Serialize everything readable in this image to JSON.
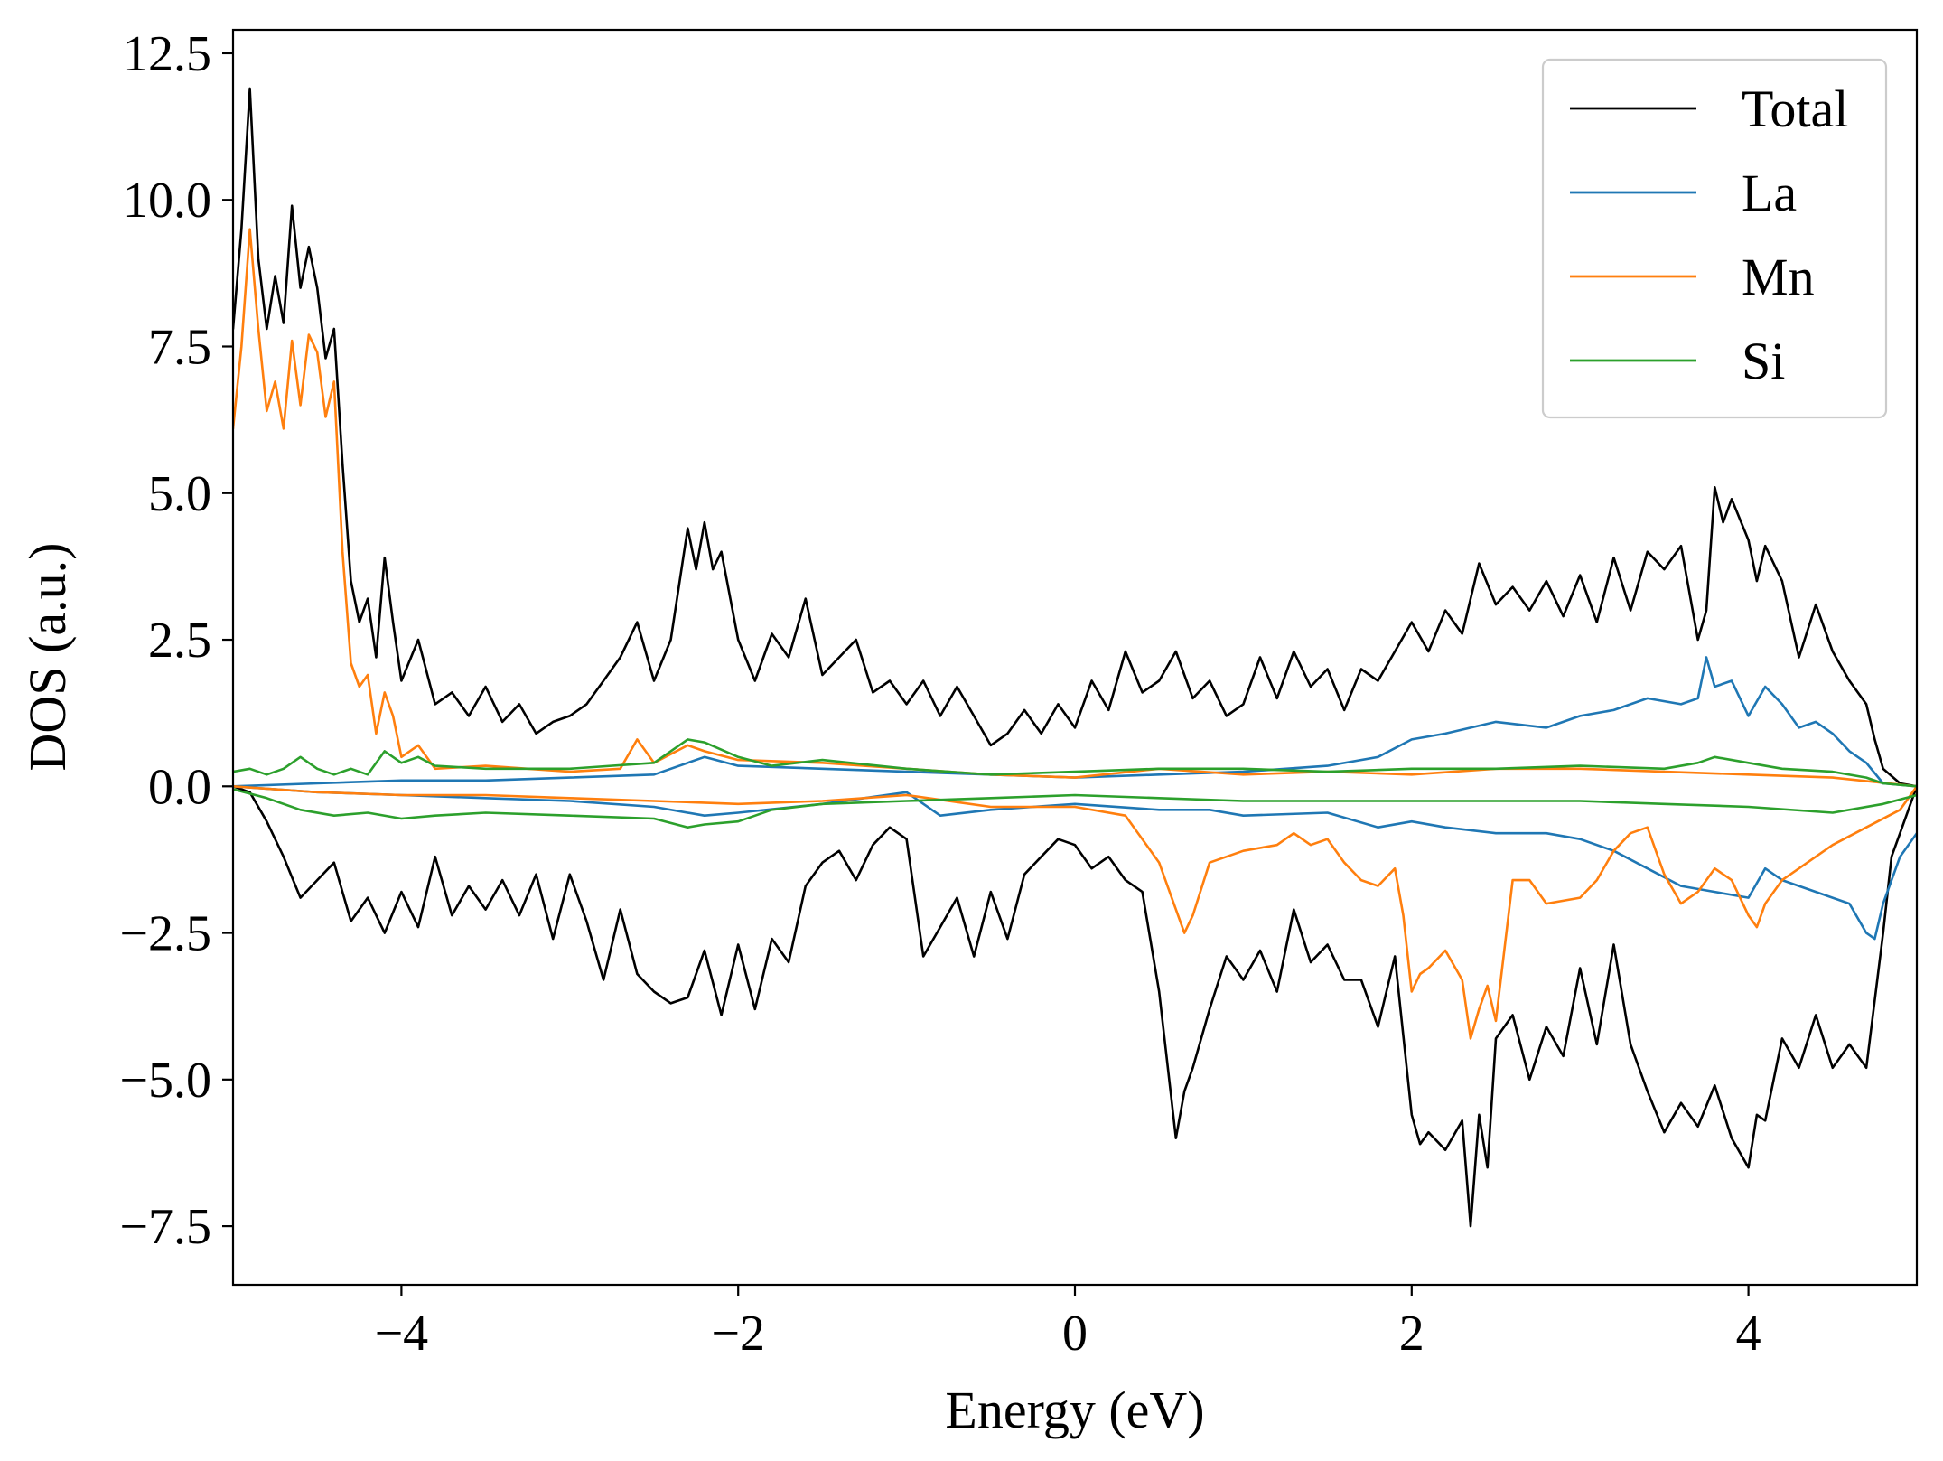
{
  "chart_data": {
    "type": "line",
    "xlabel": "Energy (eV)",
    "ylabel": "DOS (a.u.)",
    "xlim": [
      -5,
      5
    ],
    "ylim": [
      -8.5,
      12.9
    ],
    "xticks": [
      -4,
      -2,
      0,
      2,
      4
    ],
    "xtick_labels": [
      "−4",
      "−2",
      "0",
      "2",
      "4"
    ],
    "yticks": [
      -7.5,
      -5.0,
      -2.5,
      0.0,
      2.5,
      5.0,
      7.5,
      10.0,
      12.5
    ],
    "ytick_labels": [
      "−7.5",
      "−5.0",
      "−2.5",
      "0.0",
      "2.5",
      "5.0",
      "7.5",
      "10.0",
      "12.5"
    ],
    "grid": false,
    "legend_position": "top-right",
    "series": [
      {
        "name": "Total",
        "color": "#000000",
        "spin_up": {
          "x": [
            -5.0,
            -4.95,
            -4.9,
            -4.85,
            -4.8,
            -4.75,
            -4.7,
            -4.65,
            -4.6,
            -4.55,
            -4.5,
            -4.45,
            -4.4,
            -4.35,
            -4.3,
            -4.25,
            -4.2,
            -4.15,
            -4.1,
            -4.05,
            -4.0,
            -3.9,
            -3.8,
            -3.7,
            -3.6,
            -3.5,
            -3.4,
            -3.3,
            -3.2,
            -3.1,
            -3.0,
            -2.9,
            -2.8,
            -2.7,
            -2.6,
            -2.5,
            -2.4,
            -2.3,
            -2.25,
            -2.2,
            -2.15,
            -2.1,
            -2.0,
            -1.9,
            -1.8,
            -1.7,
            -1.6,
            -1.5,
            -1.4,
            -1.3,
            -1.2,
            -1.1,
            -1.0,
            -0.9,
            -0.8,
            -0.7,
            -0.6,
            -0.5,
            -0.4,
            -0.3,
            -0.2,
            -0.1,
            0.0,
            0.1,
            0.2,
            0.3,
            0.4,
            0.5,
            0.6,
            0.7,
            0.8,
            0.9,
            1.0,
            1.1,
            1.2,
            1.3,
            1.4,
            1.5,
            1.6,
            1.7,
            1.8,
            1.9,
            2.0,
            2.1,
            2.2,
            2.3,
            2.4,
            2.5,
            2.6,
            2.7,
            2.8,
            2.9,
            3.0,
            3.1,
            3.2,
            3.3,
            3.4,
            3.5,
            3.6,
            3.7,
            3.75,
            3.8,
            3.85,
            3.9,
            4.0,
            4.05,
            4.1,
            4.2,
            4.3,
            4.4,
            4.5,
            4.6,
            4.7,
            4.75,
            4.8,
            4.9,
            5.0
          ],
          "y": [
            7.8,
            9.5,
            11.9,
            9.0,
            7.8,
            8.7,
            7.9,
            9.9,
            8.5,
            9.2,
            8.5,
            7.3,
            7.8,
            5.5,
            3.5,
            2.8,
            3.2,
            2.2,
            3.9,
            2.8,
            1.8,
            2.5,
            1.4,
            1.6,
            1.2,
            1.7,
            1.1,
            1.4,
            0.9,
            1.1,
            1.2,
            1.4,
            1.8,
            2.2,
            2.8,
            1.8,
            2.5,
            4.4,
            3.7,
            4.5,
            3.7,
            4.0,
            2.5,
            1.8,
            2.6,
            2.2,
            3.2,
            1.9,
            2.2,
            2.5,
            1.6,
            1.8,
            1.4,
            1.8,
            1.2,
            1.7,
            1.2,
            0.7,
            0.9,
            1.3,
            0.9,
            1.4,
            1.0,
            1.8,
            1.3,
            2.3,
            1.6,
            1.8,
            2.3,
            1.5,
            1.8,
            1.2,
            1.4,
            2.2,
            1.5,
            2.3,
            1.7,
            2.0,
            1.3,
            2.0,
            1.8,
            2.3,
            2.8,
            2.3,
            3.0,
            2.6,
            3.8,
            3.1,
            3.4,
            3.0,
            3.5,
            2.9,
            3.6,
            2.8,
            3.9,
            3.0,
            4.0,
            3.7,
            4.1,
            2.5,
            3.0,
            5.1,
            4.5,
            4.9,
            4.2,
            3.5,
            4.1,
            3.5,
            2.2,
            3.1,
            2.3,
            1.8,
            1.4,
            0.8,
            0.3,
            0.05,
            0.0
          ]
        },
        "spin_down": {
          "x": [
            -5.0,
            -4.9,
            -4.8,
            -4.7,
            -4.6,
            -4.5,
            -4.4,
            -4.3,
            -4.2,
            -4.1,
            -4.0,
            -3.9,
            -3.8,
            -3.7,
            -3.6,
            -3.5,
            -3.4,
            -3.3,
            -3.2,
            -3.1,
            -3.0,
            -2.9,
            -2.8,
            -2.7,
            -2.6,
            -2.5,
            -2.4,
            -2.3,
            -2.2,
            -2.1,
            -2.0,
            -1.9,
            -1.8,
            -1.7,
            -1.6,
            -1.5,
            -1.4,
            -1.3,
            -1.2,
            -1.1,
            -1.0,
            -0.9,
            -0.8,
            -0.7,
            -0.6,
            -0.5,
            -0.4,
            -0.3,
            -0.2,
            -0.1,
            0.0,
            0.1,
            0.2,
            0.3,
            0.4,
            0.5,
            0.6,
            0.65,
            0.7,
            0.8,
            0.9,
            1.0,
            1.1,
            1.2,
            1.3,
            1.4,
            1.5,
            1.6,
            1.7,
            1.8,
            1.9,
            2.0,
            2.05,
            2.1,
            2.2,
            2.3,
            2.35,
            2.4,
            2.45,
            2.5,
            2.6,
            2.7,
            2.8,
            2.9,
            3.0,
            3.1,
            3.2,
            3.3,
            3.4,
            3.5,
            3.6,
            3.7,
            3.8,
            3.9,
            4.0,
            4.05,
            4.1,
            4.2,
            4.3,
            4.4,
            4.5,
            4.6,
            4.7,
            4.8,
            4.85,
            4.9,
            5.0
          ],
          "y": [
            0.0,
            -0.1,
            -0.6,
            -1.2,
            -1.9,
            -1.6,
            -1.3,
            -2.3,
            -1.9,
            -2.5,
            -1.8,
            -2.4,
            -1.2,
            -2.2,
            -1.7,
            -2.1,
            -1.6,
            -2.2,
            -1.5,
            -2.6,
            -1.5,
            -2.3,
            -3.3,
            -2.1,
            -3.2,
            -3.5,
            -3.7,
            -3.6,
            -2.8,
            -3.9,
            -2.7,
            -3.8,
            -2.6,
            -3.0,
            -1.7,
            -1.3,
            -1.1,
            -1.6,
            -1.0,
            -0.7,
            -0.9,
            -2.9,
            -2.4,
            -1.9,
            -2.9,
            -1.8,
            -2.6,
            -1.5,
            -1.2,
            -0.9,
            -1.0,
            -1.4,
            -1.2,
            -1.6,
            -1.8,
            -3.5,
            -6.0,
            -5.2,
            -4.8,
            -3.8,
            -2.9,
            -3.3,
            -2.8,
            -3.5,
            -2.1,
            -3.0,
            -2.7,
            -3.3,
            -3.3,
            -4.1,
            -2.9,
            -5.6,
            -6.1,
            -5.9,
            -6.2,
            -5.7,
            -7.5,
            -5.6,
            -6.5,
            -4.3,
            -3.9,
            -5.0,
            -4.1,
            -4.6,
            -3.1,
            -4.4,
            -2.7,
            -4.4,
            -5.2,
            -5.9,
            -5.4,
            -5.8,
            -5.1,
            -6.0,
            -6.5,
            -5.6,
            -5.7,
            -4.3,
            -4.8,
            -3.9,
            -4.8,
            -4.4,
            -4.8,
            -2.5,
            -1.2,
            -0.8,
            0.0
          ]
        }
      },
      {
        "name": "La",
        "color": "#1f77b4",
        "spin_up": {
          "x": [
            -5.0,
            -4.5,
            -4.0,
            -3.5,
            -3.0,
            -2.5,
            -2.2,
            -2.0,
            -1.5,
            -1.0,
            -0.5,
            0.0,
            0.5,
            1.0,
            1.5,
            1.8,
            2.0,
            2.2,
            2.5,
            2.8,
            3.0,
            3.2,
            3.4,
            3.6,
            3.7,
            3.75,
            3.8,
            3.9,
            4.0,
            4.1,
            4.2,
            4.3,
            4.4,
            4.5,
            4.6,
            4.7,
            4.8,
            5.0
          ],
          "y": [
            0.0,
            0.05,
            0.1,
            0.1,
            0.15,
            0.2,
            0.5,
            0.35,
            0.3,
            0.25,
            0.2,
            0.15,
            0.2,
            0.25,
            0.35,
            0.5,
            0.8,
            0.9,
            1.1,
            1.0,
            1.2,
            1.3,
            1.5,
            1.4,
            1.5,
            2.2,
            1.7,
            1.8,
            1.2,
            1.7,
            1.4,
            1.0,
            1.1,
            0.9,
            0.6,
            0.4,
            0.05,
            0.0
          ]
        },
        "spin_down": {
          "x": [
            -5.0,
            -4.5,
            -4.0,
            -3.5,
            -3.0,
            -2.5,
            -2.2,
            -2.0,
            -1.5,
            -1.0,
            -0.8,
            -0.5,
            0.0,
            0.5,
            0.8,
            1.0,
            1.5,
            1.8,
            2.0,
            2.2,
            2.5,
            2.8,
            3.0,
            3.2,
            3.4,
            3.6,
            3.8,
            4.0,
            4.1,
            4.2,
            4.4,
            4.6,
            4.7,
            4.75,
            4.8,
            4.9,
            5.0
          ],
          "y": [
            0.0,
            -0.1,
            -0.15,
            -0.2,
            -0.25,
            -0.35,
            -0.5,
            -0.45,
            -0.3,
            -0.1,
            -0.5,
            -0.4,
            -0.3,
            -0.4,
            -0.4,
            -0.5,
            -0.45,
            -0.7,
            -0.6,
            -0.7,
            -0.8,
            -0.8,
            -0.9,
            -1.1,
            -1.4,
            -1.7,
            -1.8,
            -1.9,
            -1.4,
            -1.6,
            -1.8,
            -2.0,
            -2.5,
            -2.6,
            -2.0,
            -1.2,
            -0.8
          ]
        }
      },
      {
        "name": "Mn",
        "color": "#ff7f0e",
        "spin_up": {
          "x": [
            -5.0,
            -4.95,
            -4.9,
            -4.85,
            -4.8,
            -4.75,
            -4.7,
            -4.65,
            -4.6,
            -4.55,
            -4.5,
            -4.45,
            -4.4,
            -4.35,
            -4.3,
            -4.25,
            -4.2,
            -4.15,
            -4.1,
            -4.05,
            -4.0,
            -3.9,
            -3.8,
            -3.5,
            -3.0,
            -2.7,
            -2.6,
            -2.5,
            -2.3,
            -2.2,
            -2.0,
            -1.5,
            -1.0,
            -0.5,
            0.0,
            0.5,
            1.0,
            1.5,
            2.0,
            2.5,
            3.0,
            3.5,
            4.0,
            4.5,
            5.0
          ],
          "y": [
            6.1,
            7.5,
            9.5,
            7.8,
            6.4,
            6.9,
            6.1,
            7.6,
            6.5,
            7.7,
            7.4,
            6.3,
            6.9,
            4.0,
            2.1,
            1.7,
            1.9,
            0.9,
            1.6,
            1.2,
            0.5,
            0.7,
            0.3,
            0.35,
            0.25,
            0.3,
            0.8,
            0.4,
            0.7,
            0.6,
            0.45,
            0.4,
            0.3,
            0.2,
            0.15,
            0.3,
            0.2,
            0.25,
            0.2,
            0.3,
            0.3,
            0.25,
            0.2,
            0.15,
            0.0
          ]
        },
        "spin_down": {
          "x": [
            -5.0,
            -4.5,
            -4.0,
            -3.5,
            -3.0,
            -2.5,
            -2.0,
            -1.5,
            -1.0,
            -0.5,
            0.0,
            0.3,
            0.5,
            0.6,
            0.65,
            0.7,
            0.8,
            0.9,
            1.0,
            1.2,
            1.3,
            1.4,
            1.5,
            1.6,
            1.7,
            1.8,
            1.9,
            1.95,
            2.0,
            2.05,
            2.1,
            2.2,
            2.3,
            2.35,
            2.4,
            2.45,
            2.5,
            2.6,
            2.7,
            2.8,
            3.0,
            3.1,
            3.2,
            3.3,
            3.4,
            3.5,
            3.6,
            3.7,
            3.8,
            3.9,
            4.0,
            4.05,
            4.1,
            4.2,
            4.3,
            4.5,
            4.7,
            4.9,
            5.0
          ],
          "y": [
            0.0,
            -0.1,
            -0.15,
            -0.15,
            -0.2,
            -0.25,
            -0.3,
            -0.25,
            -0.15,
            -0.35,
            -0.35,
            -0.5,
            -1.3,
            -2.1,
            -2.5,
            -2.2,
            -1.3,
            -1.2,
            -1.1,
            -1.0,
            -0.8,
            -1.0,
            -0.9,
            -1.3,
            -1.6,
            -1.7,
            -1.4,
            -2.2,
            -3.5,
            -3.2,
            -3.1,
            -2.8,
            -3.3,
            -4.3,
            -3.8,
            -3.4,
            -4.0,
            -1.6,
            -1.6,
            -2.0,
            -1.9,
            -1.6,
            -1.1,
            -0.8,
            -0.7,
            -1.5,
            -2.0,
            -1.8,
            -1.4,
            -1.6,
            -2.2,
            -2.4,
            -2.0,
            -1.6,
            -1.4,
            -1.0,
            -0.7,
            -0.4,
            0.0
          ]
        }
      },
      {
        "name": "Si",
        "color": "#2ca02c",
        "spin_up": {
          "x": [
            -5.0,
            -4.9,
            -4.8,
            -4.7,
            -4.6,
            -4.5,
            -4.4,
            -4.3,
            -4.2,
            -4.1,
            -4.0,
            -3.9,
            -3.8,
            -3.5,
            -3.0,
            -2.5,
            -2.3,
            -2.2,
            -2.0,
            -1.8,
            -1.5,
            -1.0,
            -0.5,
            0.0,
            0.5,
            1.0,
            1.5,
            2.0,
            2.5,
            3.0,
            3.5,
            3.7,
            3.8,
            4.0,
            4.2,
            4.5,
            4.7,
            4.8,
            5.0
          ],
          "y": [
            0.25,
            0.3,
            0.2,
            0.3,
            0.5,
            0.3,
            0.2,
            0.3,
            0.2,
            0.6,
            0.4,
            0.5,
            0.35,
            0.3,
            0.3,
            0.4,
            0.8,
            0.75,
            0.5,
            0.35,
            0.45,
            0.3,
            0.2,
            0.25,
            0.3,
            0.3,
            0.25,
            0.3,
            0.3,
            0.35,
            0.3,
            0.4,
            0.5,
            0.4,
            0.3,
            0.25,
            0.15,
            0.05,
            0.0
          ]
        },
        "spin_down": {
          "x": [
            -5.0,
            -4.8,
            -4.6,
            -4.4,
            -4.2,
            -4.0,
            -3.8,
            -3.5,
            -3.0,
            -2.5,
            -2.3,
            -2.2,
            -2.0,
            -1.8,
            -1.5,
            -1.0,
            -0.5,
            0.0,
            0.5,
            1.0,
            1.5,
            2.0,
            2.5,
            3.0,
            3.5,
            4.0,
            4.5,
            4.8,
            5.0
          ],
          "y": [
            -0.05,
            -0.2,
            -0.4,
            -0.5,
            -0.45,
            -0.55,
            -0.5,
            -0.45,
            -0.5,
            -0.55,
            -0.7,
            -0.65,
            -0.6,
            -0.4,
            -0.3,
            -0.25,
            -0.2,
            -0.15,
            -0.2,
            -0.25,
            -0.25,
            -0.25,
            -0.25,
            -0.25,
            -0.3,
            -0.35,
            -0.45,
            -0.3,
            -0.15
          ]
        }
      }
    ]
  }
}
